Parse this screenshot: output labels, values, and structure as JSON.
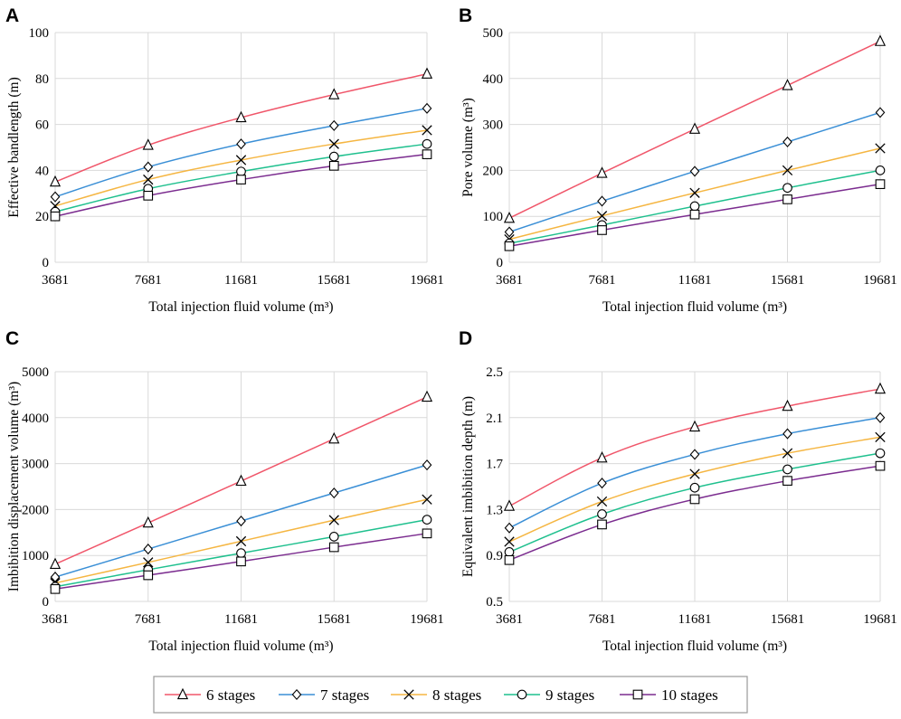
{
  "legend": [
    {
      "name": "6 stages",
      "color": "#f0566a",
      "marker": "triangle"
    },
    {
      "name": "7 stages",
      "color": "#3a8fd6",
      "marker": "diamond"
    },
    {
      "name": "8 stages",
      "color": "#f5b642",
      "marker": "x"
    },
    {
      "name": "9 stages",
      "color": "#1fc08e",
      "marker": "circle"
    },
    {
      "name": "10 stages",
      "color": "#7b2c8f",
      "marker": "square"
    }
  ],
  "chart_data": [
    {
      "panel": "A",
      "type": "line",
      "categories": [
        "3681",
        "7681",
        "11681",
        "15681",
        "19681"
      ],
      "xlabel": "Total injection fluid volume (m³)",
      "ylabel": "Effective bandlength (m)",
      "ylim": [
        0,
        100
      ],
      "yticks": [
        "0",
        "20",
        "40",
        "60",
        "80",
        "100"
      ],
      "series": [
        {
          "name": "6 stages",
          "values": [
            35,
            51,
            63,
            73,
            82
          ]
        },
        {
          "name": "7 stages",
          "values": [
            28.5,
            41.5,
            51.5,
            59.5,
            67
          ]
        },
        {
          "name": "8 stages",
          "values": [
            24.5,
            36,
            44.5,
            51.5,
            57.5
          ]
        },
        {
          "name": "9 stages",
          "values": [
            22,
            32,
            39.5,
            46,
            51.5
          ]
        },
        {
          "name": "10 stages",
          "values": [
            20,
            29,
            36,
            42,
            47
          ]
        }
      ]
    },
    {
      "panel": "B",
      "type": "line",
      "categories": [
        "3681",
        "7681",
        "11681",
        "15681",
        "19681"
      ],
      "xlabel": "Total injection fluid volume (m³)",
      "ylabel": "Pore volume (m³)",
      "ylim": [
        0,
        500
      ],
      "yticks": [
        "0",
        "100",
        "200",
        "300",
        "400",
        "500"
      ],
      "series": [
        {
          "name": "6 stages",
          "values": [
            96,
            194,
            290,
            385,
            481
          ]
        },
        {
          "name": "7 stages",
          "values": [
            66,
            133,
            198,
            262,
            326
          ]
        },
        {
          "name": "8 stages",
          "values": [
            50,
            101,
            151,
            200,
            248
          ]
        },
        {
          "name": "9 stages",
          "values": [
            41,
            81,
            122,
            162,
            200
          ]
        },
        {
          "name": "10 stages",
          "values": [
            35,
            70,
            104,
            137,
            170
          ]
        }
      ]
    },
    {
      "panel": "C",
      "type": "line",
      "categories": [
        "3681",
        "7681",
        "11681",
        "15681",
        "19681"
      ],
      "xlabel": "Total injection fluid volume (m³)",
      "ylabel": "Imbibition displacement volume (m³)",
      "ylim": [
        0,
        5000
      ],
      "yticks": [
        "0",
        "1000",
        "2000",
        "3000",
        "4000",
        "5000"
      ],
      "series": [
        {
          "name": "6 stages",
          "values": [
            810,
            1710,
            2620,
            3540,
            4450
          ]
        },
        {
          "name": "7 stages",
          "values": [
            530,
            1140,
            1750,
            2360,
            2970
          ]
        },
        {
          "name": "8 stages",
          "values": [
            400,
            850,
            1310,
            1770,
            2220
          ]
        },
        {
          "name": "9 stages",
          "values": [
            320,
            690,
            1050,
            1410,
            1780
          ]
        },
        {
          "name": "10 stages",
          "values": [
            270,
            570,
            870,
            1180,
            1480
          ]
        }
      ]
    },
    {
      "panel": "D",
      "type": "line",
      "categories": [
        "3681",
        "7681",
        "11681",
        "15681",
        "19681"
      ],
      "xlabel": "Total injection fluid volume (m³)",
      "ylabel": "Equivalent imbibition depth (m)",
      "ylim": [
        0.5,
        2.5
      ],
      "yticks": [
        "0.5",
        "0.9",
        "1.3",
        "1.7",
        "2.1",
        "2.5"
      ],
      "series": [
        {
          "name": "6 stages",
          "values": [
            1.33,
            1.75,
            2.02,
            2.2,
            2.35
          ]
        },
        {
          "name": "7 stages",
          "values": [
            1.14,
            1.53,
            1.78,
            1.96,
            2.1
          ]
        },
        {
          "name": "8 stages",
          "values": [
            1.02,
            1.37,
            1.61,
            1.79,
            1.93
          ]
        },
        {
          "name": "9 stages",
          "values": [
            0.93,
            1.26,
            1.49,
            1.65,
            1.79
          ]
        },
        {
          "name": "10 stages",
          "values": [
            0.86,
            1.17,
            1.39,
            1.55,
            1.68
          ]
        }
      ]
    }
  ]
}
